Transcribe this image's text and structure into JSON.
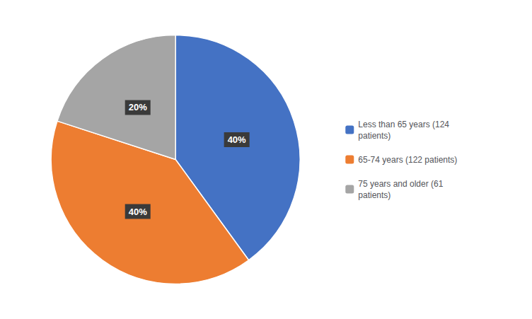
{
  "chart_data": {
    "type": "pie",
    "categories": [
      "Less than 65 years (124\npatients)",
      "65-74 years (122 patients)",
      "75 years and older (61\npatients)"
    ],
    "values": [
      40,
      40,
      20
    ],
    "value_labels": [
      "40%",
      "40%",
      "20%"
    ],
    "colors": [
      "#4472C4",
      "#ED7D31",
      "#A5A5A5"
    ],
    "data_labels": true,
    "legend": "right"
  }
}
